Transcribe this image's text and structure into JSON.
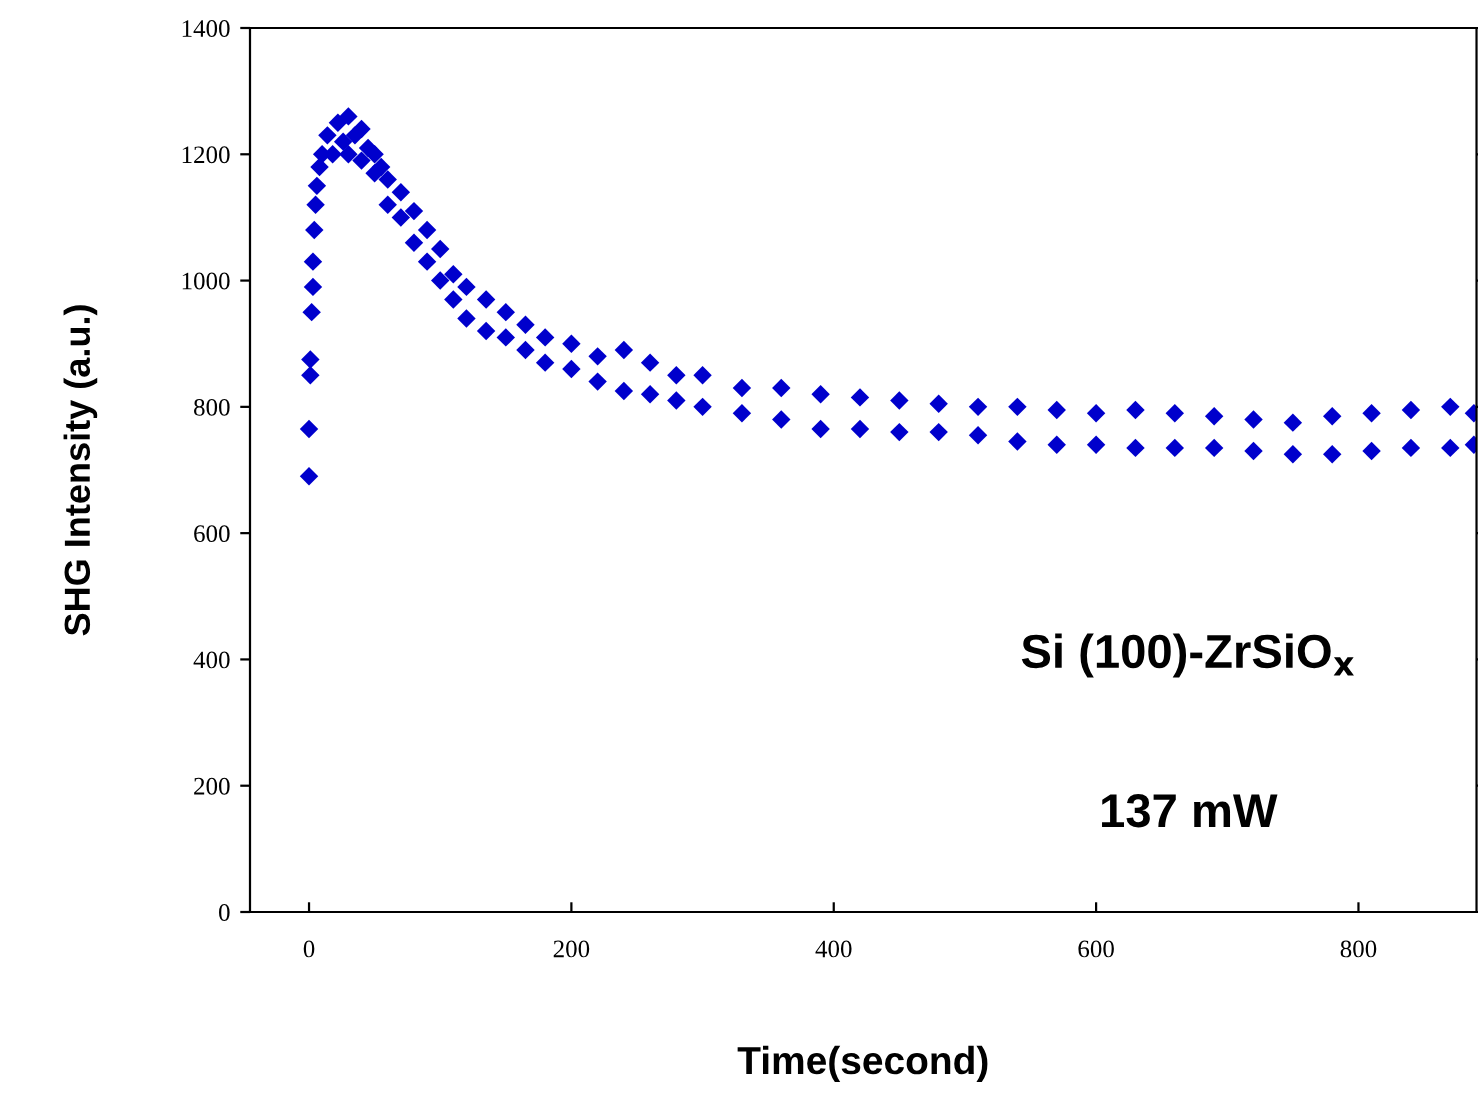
{
  "chart_data": {
    "type": "scatter",
    "xlabel": "Time(second)",
    "ylabel": "SHG Intensity (a.u.)",
    "annotations": [
      "Si (100)-ZrSiO$_{x}$",
      "137 mW"
    ],
    "xlim": [
      -45,
      890
    ],
    "ylim": [
      0,
      1400
    ],
    "xticks": [
      0,
      200,
      400,
      600,
      800
    ],
    "yticks": [
      0,
      200,
      400,
      600,
      800,
      1000,
      1200,
      1400
    ],
    "marker": "diamond",
    "grid": false,
    "legend": false,
    "series": [
      {
        "color": "#0000cc",
        "x": [
          0,
          0,
          1,
          1,
          2,
          3,
          3,
          4,
          5,
          6,
          8,
          10,
          14,
          18,
          22,
          26,
          30,
          30,
          35,
          40,
          40,
          45,
          50,
          50,
          55,
          60,
          60,
          70,
          70,
          80,
          80,
          90,
          90,
          100,
          100,
          110,
          110,
          120,
          120,
          135,
          135,
          150,
          150,
          165,
          165,
          180,
          180,
          200,
          200,
          220,
          220,
          240,
          240,
          260,
          260,
          280,
          280,
          300,
          300,
          330,
          330,
          360,
          360,
          390,
          390,
          420,
          420,
          450,
          450,
          480,
          480,
          510,
          510,
          540,
          540,
          570,
          570,
          600,
          600,
          630,
          630,
          660,
          660,
          690,
          690,
          720,
          720,
          750,
          750,
          780,
          780,
          810,
          810,
          840,
          840,
          870,
          870,
          888,
          888
        ],
        "values": [
          690,
          765,
          850,
          875,
          950,
          990,
          1030,
          1080,
          1120,
          1150,
          1180,
          1200,
          1230,
          1200,
          1250,
          1220,
          1260,
          1200,
          1230,
          1240,
          1190,
          1210,
          1200,
          1170,
          1180,
          1160,
          1120,
          1140,
          1100,
          1110,
          1060,
          1080,
          1030,
          1050,
          1000,
          1010,
          970,
          990,
          940,
          970,
          920,
          950,
          910,
          930,
          890,
          910,
          870,
          900,
          860,
          880,
          840,
          890,
          825,
          870,
          820,
          850,
          810,
          850,
          800,
          830,
          790,
          830,
          780,
          820,
          765,
          815,
          765,
          810,
          760,
          805,
          760,
          800,
          755,
          800,
          745,
          795,
          740,
          790,
          740,
          795,
          735,
          790,
          735,
          785,
          735,
          780,
          730,
          775,
          725,
          785,
          725,
          790,
          730,
          795,
          735,
          800,
          735,
          790,
          740
        ]
      }
    ]
  }
}
